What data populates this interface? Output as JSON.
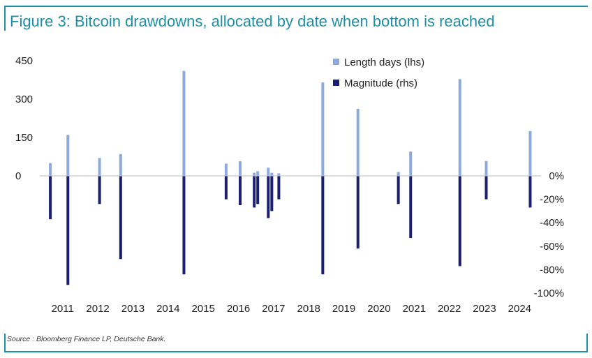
{
  "title": "Figure 3: Bitcoin drawdowns, allocated by date when bottom is reached",
  "source": "Source : Bloomberg Finance LP, Deutsche Bank.",
  "colors": {
    "length": "#8eaadb",
    "magnitude": "#1a1f71",
    "accent": "#1d8fa8"
  },
  "chart_data": {
    "type": "bar",
    "title": "Figure 3: Bitcoin drawdowns, allocated by date when bottom is reached",
    "x_ticks": [
      "2011",
      "2012",
      "2013",
      "2014",
      "2015",
      "2016",
      "2017",
      "2018",
      "2019",
      "2020",
      "2021",
      "2022",
      "2023",
      "2024"
    ],
    "x_range": [
      2010.75,
      2024.85
    ],
    "y_left": {
      "ticks": [
        "450",
        "300",
        "150",
        "0"
      ],
      "tick_values": [
        450,
        300,
        150,
        0
      ],
      "range": [
        0,
        450
      ]
    },
    "y_right": {
      "ticks": [
        "0%",
        "-20%",
        "-40%",
        "-60%",
        "-80%",
        "-100%"
      ],
      "tick_values": [
        0,
        -20,
        -40,
        -60,
        -80,
        -100
      ],
      "range": [
        -100,
        0
      ]
    },
    "legend": {
      "position": "top-right"
    },
    "grid": false,
    "series": [
      {
        "name": "Length days (lhs)",
        "axis": "left",
        "color": "#8eaadb",
        "points": [
          {
            "x": 2011.05,
            "y": 50
          },
          {
            "x": 2011.55,
            "y": 160
          },
          {
            "x": 2012.45,
            "y": 70
          },
          {
            "x": 2013.05,
            "y": 85
          },
          {
            "x": 2014.85,
            "y": 410
          },
          {
            "x": 2016.05,
            "y": 48
          },
          {
            "x": 2016.45,
            "y": 57
          },
          {
            "x": 2016.85,
            "y": 12
          },
          {
            "x": 2016.95,
            "y": 18
          },
          {
            "x": 2017.25,
            "y": 32
          },
          {
            "x": 2017.35,
            "y": 12
          },
          {
            "x": 2017.55,
            "y": 10
          },
          {
            "x": 2018.8,
            "y": 365
          },
          {
            "x": 2019.8,
            "y": 262
          },
          {
            "x": 2020.95,
            "y": 15
          },
          {
            "x": 2021.3,
            "y": 95
          },
          {
            "x": 2022.7,
            "y": 378
          },
          {
            "x": 2023.45,
            "y": 58
          },
          {
            "x": 2024.7,
            "y": 175
          }
        ]
      },
      {
        "name": "Magnitude (rhs)",
        "axis": "right",
        "color": "#1a1f71",
        "points": [
          {
            "x": 2011.05,
            "y": -37
          },
          {
            "x": 2011.55,
            "y": -93
          },
          {
            "x": 2012.45,
            "y": -24
          },
          {
            "x": 2013.05,
            "y": -71
          },
          {
            "x": 2014.85,
            "y": -84
          },
          {
            "x": 2016.05,
            "y": -20
          },
          {
            "x": 2016.45,
            "y": -25
          },
          {
            "x": 2016.85,
            "y": -27
          },
          {
            "x": 2016.95,
            "y": -24
          },
          {
            "x": 2017.25,
            "y": -36
          },
          {
            "x": 2017.35,
            "y": -30
          },
          {
            "x": 2017.55,
            "y": -20
          },
          {
            "x": 2018.8,
            "y": -84
          },
          {
            "x": 2019.8,
            "y": -62
          },
          {
            "x": 2020.95,
            "y": -24
          },
          {
            "x": 2021.3,
            "y": -53
          },
          {
            "x": 2022.7,
            "y": -77
          },
          {
            "x": 2023.45,
            "y": -20
          },
          {
            "x": 2024.7,
            "y": -27
          }
        ]
      }
    ]
  }
}
